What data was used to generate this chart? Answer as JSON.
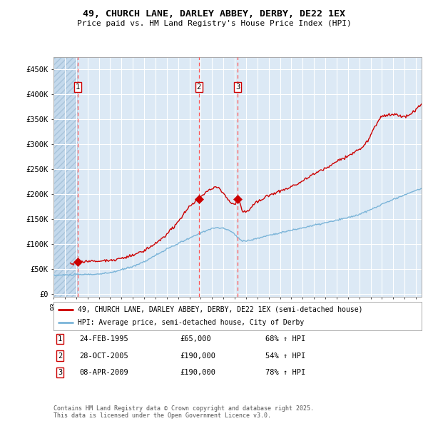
{
  "title1": "49, CHURCH LANE, DARLEY ABBEY, DERBY, DE22 1EX",
  "title2": "Price paid vs. HM Land Registry's House Price Index (HPI)",
  "legend_red": "49, CHURCH LANE, DARLEY ABBEY, DERBY, DE22 1EX (semi-detached house)",
  "legend_blue": "HPI: Average price, semi-detached house, City of Derby",
  "footnote": "Contains HM Land Registry data © Crown copyright and database right 2025.\nThis data is licensed under the Open Government Licence v3.0.",
  "transactions": [
    {
      "num": 1,
      "date": "24-FEB-1995",
      "price": 65000,
      "hpi_change": "68% ↑ HPI",
      "x_year": 1995.15
    },
    {
      "num": 2,
      "date": "28-OCT-2005",
      "price": 190000,
      "hpi_change": "54% ↑ HPI",
      "x_year": 2005.82
    },
    {
      "num": 3,
      "date": "08-APR-2009",
      "price": 190000,
      "hpi_change": "78% ↑ HPI",
      "x_year": 2009.27
    }
  ],
  "ylabel_ticks": [
    "£0",
    "£50K",
    "£100K",
    "£150K",
    "£200K",
    "£250K",
    "£300K",
    "£350K",
    "£400K",
    "£450K"
  ],
  "ylabel_vals": [
    0,
    50000,
    100000,
    150000,
    200000,
    250000,
    300000,
    350000,
    400000,
    450000
  ],
  "xlim": [
    1993.0,
    2025.5
  ],
  "ylim": [
    -5000,
    475000
  ],
  "bg_color": "#dce9f5",
  "hatch_color": "#b8cfe0",
  "red_color": "#cc0000",
  "blue_color": "#7ab4d8",
  "grid_color": "#ffffff",
  "vline_color": "#ff5555"
}
